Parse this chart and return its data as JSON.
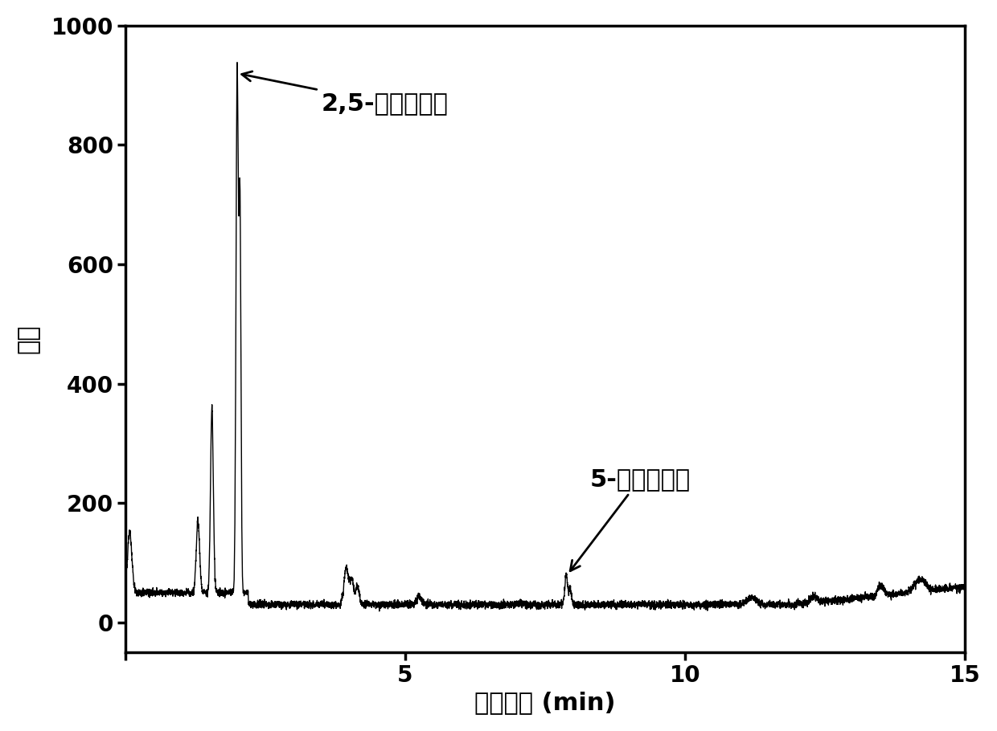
{
  "xlabel": "保留时间 (min)",
  "ylabel": "强度",
  "xlim": [
    0,
    15
  ],
  "ylim": [
    -50,
    1000
  ],
  "yticks": [
    0,
    200,
    400,
    600,
    800,
    1000
  ],
  "xticks": [
    0,
    5,
    10,
    15
  ],
  "xticklabels": [
    "",
    "5",
    "10",
    "·15"
  ],
  "label_dmf": "2,5-二甲基呗喂",
  "label_hmf": "5-羟甲基精醒",
  "line_color": "#000000",
  "bg_color": "#ffffff",
  "fontsize_label": 22,
  "fontsize_tick": 20,
  "fontsize_annotation": 22
}
